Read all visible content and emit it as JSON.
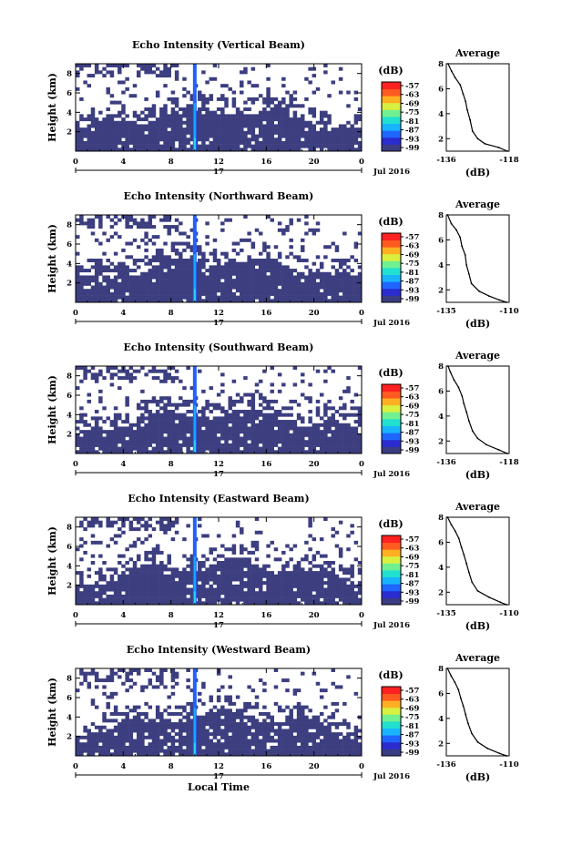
{
  "chart_data": [
    {
      "type": "heatmap",
      "title": "Echo Intensity (Vertical Beam)",
      "ylabel": "Height (km)",
      "xticks": [
        "0",
        "4",
        "8",
        "12",
        "16",
        "20",
        "0"
      ],
      "yticks": [
        "2",
        "4",
        "6",
        "8"
      ],
      "date_day": "17",
      "date_label": "Jul 2016",
      "colorbar_unit": "(dB)",
      "colorbar_ticks": [
        "-57",
        "-63",
        "-69",
        "-75",
        "-81",
        "-87",
        "-93",
        "-99"
      ],
      "profile": {
        "title": "Average",
        "xticks": [
          "-136",
          "-118"
        ],
        "yticks": [
          "2",
          "4",
          "6",
          "8"
        ],
        "xlabel": "(dB)",
        "xlim": [
          -136,
          -118
        ],
        "ylim": [
          1,
          8
        ],
        "points": [
          [
            -135.5,
            8.0
          ],
          [
            -134.5,
            7.4
          ],
          [
            -133.5,
            6.9
          ],
          [
            -132.0,
            6.3
          ],
          [
            -131.2,
            5.6
          ],
          [
            -130.5,
            5.0
          ],
          [
            -130.0,
            4.3
          ],
          [
            -129.2,
            3.5
          ],
          [
            -128.5,
            2.6
          ],
          [
            -127.0,
            2.0
          ],
          [
            -125.0,
            1.6
          ],
          [
            -121.0,
            1.3
          ],
          [
            -118.5,
            1.0
          ]
        ]
      }
    },
    {
      "type": "heatmap",
      "title": "Echo Intensity (Northward Beam)",
      "ylabel": "Height (km)",
      "xticks": [
        "0",
        "4",
        "8",
        "12",
        "16",
        "20",
        "0"
      ],
      "yticks": [
        "2",
        "4",
        "6",
        "8"
      ],
      "date_day": "17",
      "date_label": "Jul 2016",
      "colorbar_unit": "(dB)",
      "colorbar_ticks": [
        "-57",
        "-63",
        "-69",
        "-75",
        "-81",
        "-87",
        "-93",
        "-99"
      ],
      "profile": {
        "title": "Average",
        "xticks": [
          "-135",
          "-110"
        ],
        "yticks": [
          "2",
          "4",
          "6",
          "8"
        ],
        "xlabel": "(dB)",
        "xlim": [
          -135,
          -110
        ],
        "ylim": [
          1,
          8
        ],
        "points": [
          [
            -134.5,
            8.0
          ],
          [
            -133.0,
            7.3
          ],
          [
            -131.0,
            6.8
          ],
          [
            -129.5,
            6.2
          ],
          [
            -128.8,
            5.5
          ],
          [
            -127.5,
            4.8
          ],
          [
            -127.0,
            4.0
          ],
          [
            -126.0,
            3.3
          ],
          [
            -125.0,
            2.5
          ],
          [
            -122.0,
            1.9
          ],
          [
            -118.0,
            1.5
          ],
          [
            -114.0,
            1.2
          ],
          [
            -111.0,
            1.0
          ]
        ]
      }
    },
    {
      "type": "heatmap",
      "title": "Echo Intensity (Southward Beam)",
      "ylabel": "Height (km)",
      "xticks": [
        "0",
        "4",
        "8",
        "12",
        "16",
        "20",
        "0"
      ],
      "yticks": [
        "2",
        "4",
        "6",
        "8"
      ],
      "date_day": "17",
      "date_label": "Jul 2016",
      "colorbar_unit": "(dB)",
      "colorbar_ticks": [
        "-57",
        "-63",
        "-69",
        "-75",
        "-81",
        "-87",
        "-93",
        "-99"
      ],
      "profile": {
        "title": "Average",
        "xticks": [
          "-136",
          "-118"
        ],
        "yticks": [
          "2",
          "4",
          "6",
          "8"
        ],
        "xlabel": "(dB)",
        "xlim": [
          -136,
          -118
        ],
        "ylim": [
          1,
          8
        ],
        "points": [
          [
            -135.5,
            8.0
          ],
          [
            -134.8,
            7.5
          ],
          [
            -133.8,
            6.9
          ],
          [
            -132.5,
            6.3
          ],
          [
            -131.5,
            5.6
          ],
          [
            -131.0,
            5.0
          ],
          [
            -130.2,
            4.3
          ],
          [
            -129.5,
            3.6
          ],
          [
            -128.5,
            2.8
          ],
          [
            -127.0,
            2.2
          ],
          [
            -124.5,
            1.7
          ],
          [
            -121.0,
            1.3
          ],
          [
            -118.5,
            1.0
          ]
        ]
      }
    },
    {
      "type": "heatmap",
      "title": "Echo Intensity (Eastward Beam)",
      "ylabel": "Height (km)",
      "xticks": [
        "0",
        "4",
        "8",
        "12",
        "16",
        "20",
        "0"
      ],
      "yticks": [
        "2",
        "4",
        "6",
        "8"
      ],
      "date_day": "17",
      "date_label": "Jul 2016",
      "colorbar_unit": "(dB)",
      "colorbar_ticks": [
        "-57",
        "-63",
        "-69",
        "-75",
        "-81",
        "-87",
        "-93",
        "-99"
      ],
      "profile": {
        "title": "Average",
        "xticks": [
          "-135",
          "-110"
        ],
        "yticks": [
          "2",
          "4",
          "6",
          "8"
        ],
        "xlabel": "(dB)",
        "xlim": [
          -135,
          -110
        ],
        "ylim": [
          1,
          8
        ],
        "points": [
          [
            -134.5,
            8.0
          ],
          [
            -133.0,
            7.4
          ],
          [
            -131.5,
            6.9
          ],
          [
            -130.0,
            6.3
          ],
          [
            -129.0,
            5.6
          ],
          [
            -128.0,
            5.0
          ],
          [
            -127.0,
            4.3
          ],
          [
            -126.0,
            3.6
          ],
          [
            -124.8,
            2.8
          ],
          [
            -122.5,
            2.1
          ],
          [
            -118.0,
            1.6
          ],
          [
            -113.5,
            1.2
          ],
          [
            -111.0,
            1.0
          ]
        ]
      }
    },
    {
      "type": "heatmap",
      "title": "Echo Intensity (Westward Beam)",
      "ylabel": "Height (km)",
      "xticks": [
        "0",
        "4",
        "8",
        "12",
        "16",
        "20",
        "0"
      ],
      "yticks": [
        "2",
        "4",
        "6",
        "8"
      ],
      "date_day": "17",
      "date_label": "Jul 2016",
      "xlabel": "Local Time",
      "colorbar_unit": "(dB)",
      "colorbar_ticks": [
        "-57",
        "-63",
        "-69",
        "-75",
        "-81",
        "-87",
        "-93",
        "-99"
      ],
      "profile": {
        "title": "Average",
        "xticks": [
          "-136",
          "-110"
        ],
        "yticks": [
          "2",
          "4",
          "6",
          "8"
        ],
        "xlabel": "(dB)",
        "xlim": [
          -136,
          -110
        ],
        "ylim": [
          1,
          8
        ],
        "points": [
          [
            -135.5,
            8.0
          ],
          [
            -134.0,
            7.4
          ],
          [
            -132.5,
            6.9
          ],
          [
            -131.0,
            6.3
          ],
          [
            -130.0,
            5.6
          ],
          [
            -129.0,
            5.0
          ],
          [
            -128.0,
            4.3
          ],
          [
            -127.0,
            3.6
          ],
          [
            -125.5,
            2.8
          ],
          [
            -123.0,
            2.1
          ],
          [
            -119.0,
            1.6
          ],
          [
            -114.0,
            1.2
          ],
          [
            -111.0,
            1.0
          ]
        ]
      }
    }
  ],
  "colors": {
    "background_echo": "#3c3e80",
    "spike": [
      "#2060ff",
      "#19a9ff",
      "#28d4f0"
    ],
    "colorbar": [
      "#3a3c84",
      "#2a2cd0",
      "#1f66ff",
      "#18b4ff",
      "#20e0d0",
      "#70f090",
      "#d8f040",
      "#ffb020",
      "#ff5a20",
      "#ff2020"
    ]
  }
}
